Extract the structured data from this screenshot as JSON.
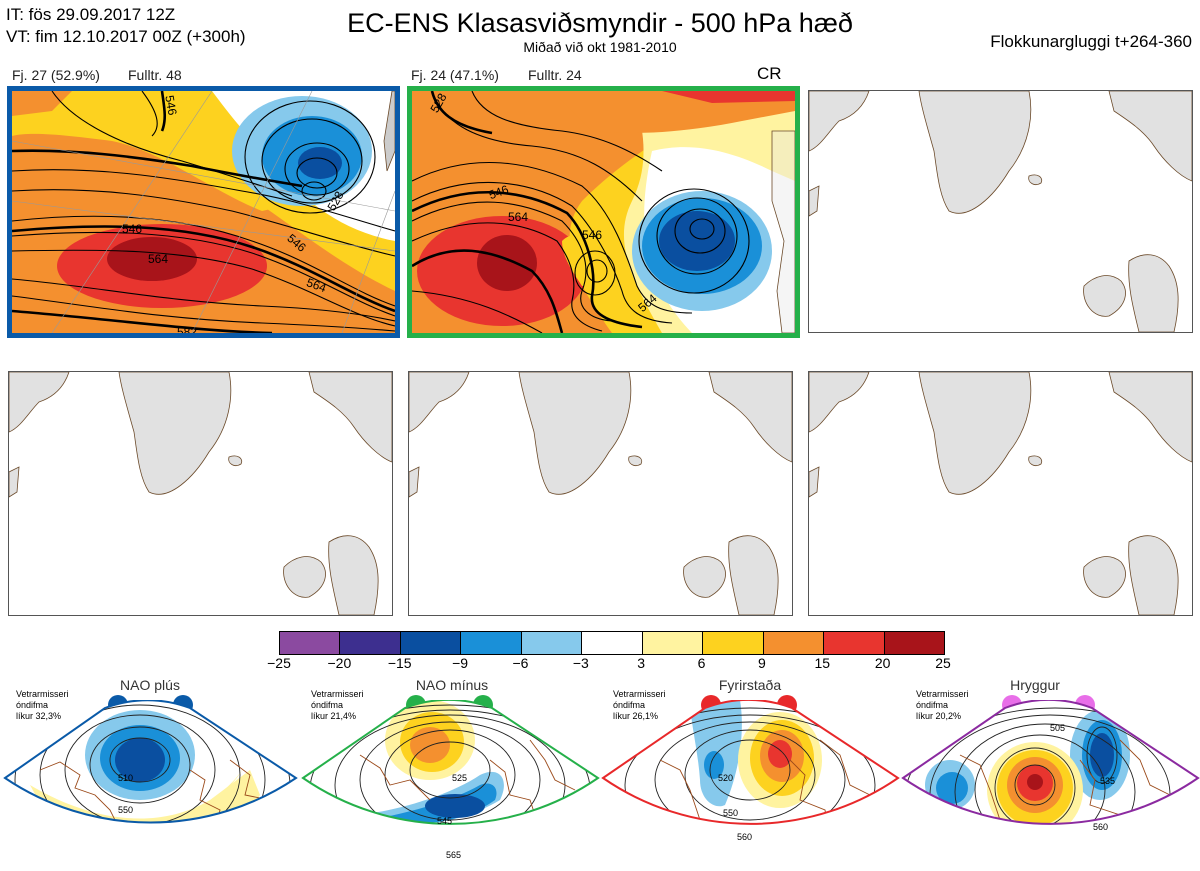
{
  "header": {
    "it_line": "IT: fös 29.09.2017 12Z",
    "vt_line": "VT: fim 12.10.2017 00Z  (+300h)",
    "title": "EC-ENS Klasasviðsmyndir - 500 hPa hæð",
    "subtitle": "Miðað við okt 1981-2010",
    "window": "Flokkunargluggi t+264-360"
  },
  "clusters": [
    {
      "label": "Fj. 27 (52.9%)",
      "rep": "Fulltr. 48",
      "frame_color": "#0a5aa8",
      "contour_labels": [
        "546",
        "564",
        "546",
        "564",
        "582",
        "528",
        "546"
      ]
    },
    {
      "label": "Fj. 24 (47.1%)",
      "rep": "Fulltr. 24",
      "frame_color": "#25b04a",
      "contour_labels": [
        "546",
        "564",
        "546",
        "564",
        "528"
      ]
    }
  ],
  "cr_label": "CR",
  "colorbar": {
    "colors": [
      "#8b4aa0",
      "#3d2f8f",
      "#0a4fa0",
      "#1a90d8",
      "#86c9ec",
      "#ffffff",
      "#fff3a0",
      "#fdd21f",
      "#f4902f",
      "#e8352f",
      "#a8141a"
    ],
    "ticks": [
      "−25",
      "−20",
      "−15",
      "−9",
      "−6",
      "−3",
      "3",
      "6",
      "9",
      "15",
      "20",
      "25"
    ]
  },
  "regimes": [
    {
      "name": "NAO plús",
      "info": [
        "Vetrarmisseri",
        "óndifma",
        "líkur 32,3%"
      ],
      "color": "#0a5aa8",
      "labels": [
        "510",
        "550"
      ]
    },
    {
      "name": "NAO mínus",
      "info": [
        "Vetrarmisseri",
        "óndifma",
        "líkur 21,4%"
      ],
      "color": "#25b04a",
      "labels": [
        "525",
        "545",
        "565"
      ]
    },
    {
      "name": "Fyrirstaða",
      "info": [
        "Vetrarmisseri",
        "óndifma",
        "líkur 26,1%"
      ],
      "color": "#e8282a",
      "labels": [
        "520",
        "550",
        "560"
      ]
    },
    {
      "name": "Hryggur",
      "info": [
        "Vetrarmisseri",
        "óndifma",
        "líkur 20,2%"
      ],
      "color": "#e86ee8",
      "labels": [
        "505",
        "535",
        "560"
      ]
    }
  ]
}
